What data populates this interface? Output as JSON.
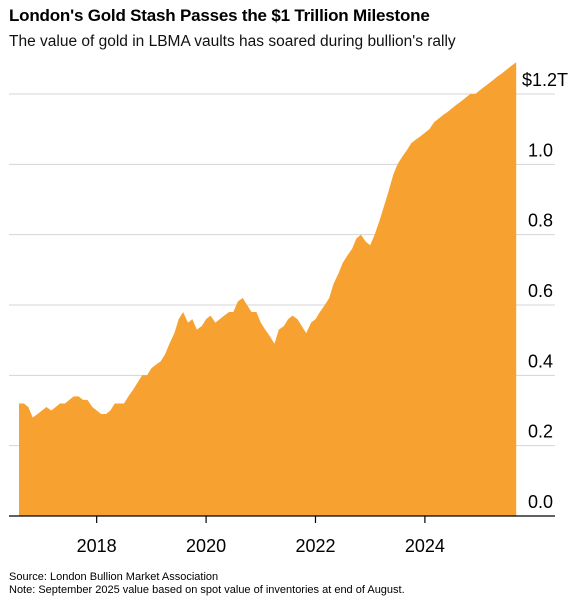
{
  "chart_data": {
    "type": "area",
    "title": "London's Gold Stash Passes the $1 Trillion Milestone",
    "subtitle": "The value of gold in LBMA vaults has soared during bullion's rally",
    "xlabel": "",
    "ylabel": "",
    "y_unit_label": "$1.2T",
    "ylim": [
      0,
      1.2
    ],
    "y_ticks": [
      0.0,
      0.2,
      0.4,
      0.6,
      0.8,
      1.0,
      1.2
    ],
    "y_tick_labels": [
      "0.0",
      "0.2",
      "0.4",
      "0.6",
      "0.8",
      "1.0",
      "$1.2T"
    ],
    "xlim": [
      2016.58,
      2025.83
    ],
    "x_ticks": [
      2018,
      2020,
      2022,
      2024
    ],
    "x_tick_labels": [
      "2018",
      "2020",
      "2022",
      "2024"
    ],
    "grid": true,
    "color": "#f7a230",
    "x": [
      2016.58,
      2016.67,
      2016.75,
      2016.83,
      2016.92,
      2017.0,
      2017.08,
      2017.17,
      2017.25,
      2017.33,
      2017.42,
      2017.5,
      2017.58,
      2017.67,
      2017.75,
      2017.83,
      2017.92,
      2018.0,
      2018.08,
      2018.17,
      2018.25,
      2018.33,
      2018.42,
      2018.5,
      2018.58,
      2018.67,
      2018.75,
      2018.83,
      2018.92,
      2019.0,
      2019.08,
      2019.17,
      2019.25,
      2019.33,
      2019.42,
      2019.5,
      2019.58,
      2019.67,
      2019.75,
      2019.83,
      2019.92,
      2020.0,
      2020.08,
      2020.17,
      2020.25,
      2020.33,
      2020.42,
      2020.5,
      2020.58,
      2020.67,
      2020.75,
      2020.83,
      2020.92,
      2021.0,
      2021.08,
      2021.17,
      2021.25,
      2021.33,
      2021.42,
      2021.5,
      2021.58,
      2021.67,
      2021.75,
      2021.83,
      2021.92,
      2022.0,
      2022.08,
      2022.17,
      2022.25,
      2022.33,
      2022.42,
      2022.5,
      2022.58,
      2022.67,
      2022.75,
      2022.83,
      2022.92,
      2023.0,
      2023.08,
      2023.17,
      2023.25,
      2023.33,
      2023.42,
      2023.5,
      2023.58,
      2023.67,
      2023.75,
      2023.83,
      2023.92,
      2024.0,
      2024.08,
      2024.17,
      2024.25,
      2024.33,
      2024.42,
      2024.5,
      2024.58,
      2024.67,
      2024.75,
      2024.83,
      2024.92,
      2025.0,
      2025.08,
      2025.17,
      2025.25,
      2025.33,
      2025.42,
      2025.5,
      2025.58,
      2025.67
    ],
    "values": [
      0.32,
      0.32,
      0.31,
      0.28,
      0.29,
      0.3,
      0.31,
      0.3,
      0.31,
      0.32,
      0.32,
      0.33,
      0.34,
      0.34,
      0.33,
      0.33,
      0.31,
      0.3,
      0.29,
      0.29,
      0.3,
      0.32,
      0.32,
      0.32,
      0.34,
      0.36,
      0.38,
      0.4,
      0.4,
      0.42,
      0.43,
      0.44,
      0.46,
      0.49,
      0.52,
      0.56,
      0.58,
      0.55,
      0.56,
      0.53,
      0.54,
      0.56,
      0.57,
      0.55,
      0.56,
      0.57,
      0.58,
      0.58,
      0.61,
      0.62,
      0.6,
      0.58,
      0.58,
      0.55,
      0.53,
      0.51,
      0.49,
      0.53,
      0.54,
      0.56,
      0.57,
      0.56,
      0.54,
      0.52,
      0.55,
      0.56,
      0.58,
      0.6,
      0.62,
      0.66,
      0.69,
      0.72,
      0.74,
      0.76,
      0.79,
      0.8,
      0.78,
      0.77,
      0.8,
      0.84,
      0.88,
      0.92,
      0.97,
      1.0,
      1.02,
      1.04,
      1.06,
      1.07,
      1.08,
      1.09,
      1.1,
      1.12,
      1.13,
      1.14,
      1.15,
      1.16,
      1.17,
      1.18,
      1.19,
      1.2,
      1.2,
      1.21,
      1.22,
      1.23,
      1.24,
      1.25,
      1.26,
      1.27,
      1.28,
      1.29
    ]
  },
  "footnotes": {
    "source": "Source: London Bullion Market Association",
    "note": "Note: September 2025 value based on spot value of inventories at end of August."
  }
}
